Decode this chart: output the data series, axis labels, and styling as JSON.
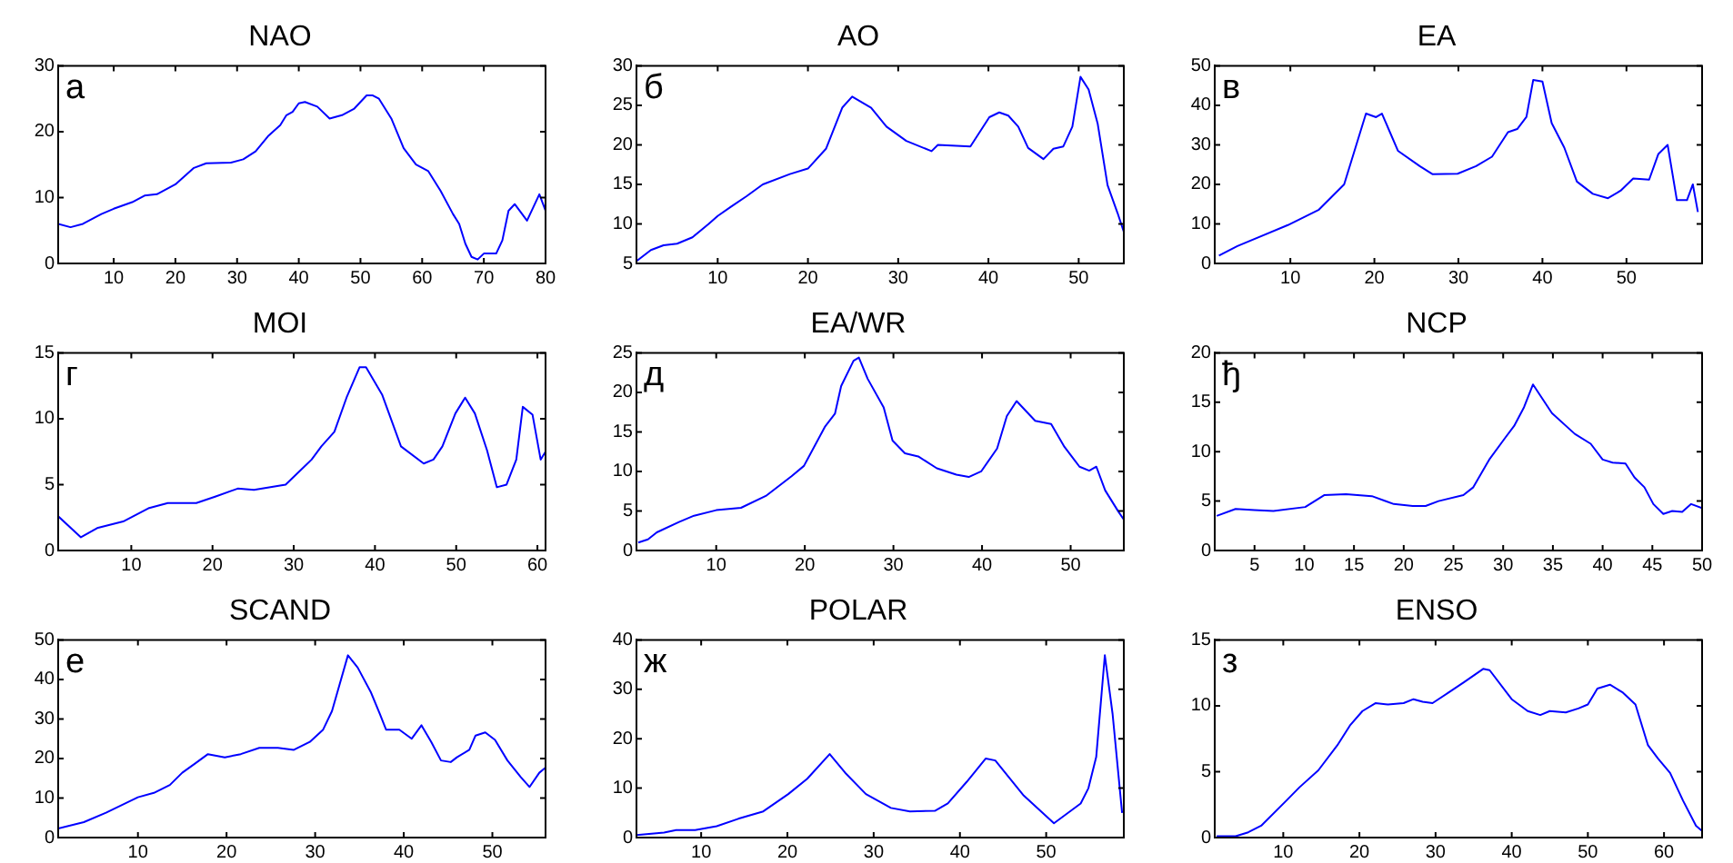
{
  "chart_data": [
    {
      "type": "line",
      "title": "NAO",
      "annotations": [
        "а"
      ],
      "color": "#0000ff",
      "grid": false,
      "legend": false,
      "xlim": [
        1,
        80
      ],
      "ylim": [
        0,
        30
      ],
      "xticks": [
        10,
        20,
        30,
        40,
        50,
        60,
        70,
        80
      ],
      "yticks": [
        0,
        10,
        20,
        30
      ],
      "x": [
        1,
        3,
        5,
        8,
        10,
        13,
        15,
        17,
        20,
        23,
        25,
        29,
        31,
        33,
        35,
        37,
        38,
        39,
        40,
        41,
        43,
        45,
        47,
        49,
        51,
        52,
        53,
        55,
        57,
        59,
        61,
        63,
        65,
        66,
        67,
        68,
        69,
        70,
        72,
        73,
        74,
        75,
        77,
        78,
        79,
        80
      ],
      "values": [
        6,
        5.5,
        6,
        7.5,
        8.3,
        9.3,
        10.3,
        10.5,
        12,
        14.5,
        15.2,
        15.3,
        15.8,
        17,
        19.3,
        21,
        22.5,
        23,
        24.3,
        24.5,
        23.8,
        22,
        22.5,
        23.5,
        25.5,
        25.5,
        25,
        22,
        17.5,
        15,
        14,
        11,
        7.5,
        6,
        3,
        1,
        0.6,
        1.5,
        1.5,
        3.5,
        8,
        9,
        6.5,
        8.5,
        10.5,
        8
      ]
    },
    {
      "type": "line",
      "title": "AO",
      "annotations": [
        "б"
      ],
      "color": "#0000ff",
      "grid": false,
      "legend": false,
      "xlim": [
        1,
        55
      ],
      "ylim": [
        5,
        30
      ],
      "xticks": [
        10,
        20,
        30,
        40,
        50
      ],
      "yticks": [
        5,
        10,
        15,
        20,
        25,
        30
      ],
      "x": [
        1,
        2.6,
        4,
        5.5,
        7.2,
        9,
        10,
        11.5,
        13.2,
        15,
        18,
        20,
        22,
        23.8,
        24.9,
        27,
        28.7,
        30.9,
        33.7,
        34.4,
        38,
        40.1,
        41.2,
        42.2,
        43.3,
        44.4,
        46.1,
        47.2,
        48.3,
        49.3,
        50.2,
        51.1,
        52.1,
        53.2,
        54.3,
        55
      ],
      "values": [
        5.3,
        6.7,
        7.3,
        7.5,
        8.3,
        10,
        11,
        12.2,
        13.5,
        15,
        16.3,
        17,
        19.5,
        24.7,
        26.1,
        24.7,
        22.3,
        20.5,
        19.2,
        20,
        19.8,
        23.5,
        24.1,
        23.7,
        22.3,
        19.6,
        18.2,
        19.5,
        19.8,
        22.3,
        28.6,
        27,
        22.7,
        14.9,
        11.4,
        9
      ]
    },
    {
      "type": "line",
      "title": "EA",
      "annotations": [
        "в"
      ],
      "color": "#0000ff",
      "grid": false,
      "legend": false,
      "xlim": [
        1,
        59
      ],
      "ylim": [
        0,
        50
      ],
      "xticks": [
        10,
        20,
        30,
        40,
        50
      ],
      "yticks": [
        0,
        10,
        20,
        30,
        40,
        50
      ],
      "x": [
        1.5,
        3.7,
        9.7,
        13.4,
        16.4,
        19,
        20.2,
        20.9,
        22.8,
        25.4,
        26.9,
        29.9,
        32.1,
        34,
        35.9,
        37,
        38.1,
        38.9,
        40,
        41.1,
        42.6,
        44.1,
        46,
        47.8,
        49.3,
        50.8,
        52.7,
        53.8,
        54.9,
        56,
        57.2,
        57.9,
        58.5
      ],
      "values": [
        2,
        4.4,
        9.7,
        13.6,
        20,
        37.9,
        37,
        37.9,
        28.5,
        24.6,
        22.6,
        22.7,
        24.6,
        27,
        33.2,
        34,
        37.1,
        46.4,
        46,
        35.5,
        29.3,
        20.7,
        17.6,
        16.5,
        18.4,
        21.5,
        21.2,
        27.7,
        30,
        16,
        16,
        20,
        13
      ]
    },
    {
      "type": "line",
      "title": "MOI",
      "annotations": [
        "г"
      ],
      "color": "#0000ff",
      "grid": false,
      "legend": false,
      "xlim": [
        1,
        61
      ],
      "ylim": [
        0,
        15
      ],
      "xticks": [
        10,
        20,
        30,
        40,
        50,
        60
      ],
      "yticks": [
        0,
        5,
        10,
        15
      ],
      "x": [
        1,
        3.8,
        5.8,
        9,
        12.1,
        14.5,
        18,
        20.4,
        23.1,
        25.1,
        29,
        32.2,
        33.4,
        35,
        36.5,
        38.1,
        38.9,
        40.9,
        43.2,
        46,
        47.2,
        48.3,
        49.9,
        51.1,
        52.3,
        53.8,
        55,
        56.2,
        57.4,
        58.2,
        59.4,
        60.4,
        61
      ],
      "values": [
        2.6,
        1,
        1.7,
        2.2,
        3.2,
        3.6,
        3.6,
        4.1,
        4.7,
        4.6,
        5,
        6.9,
        7.9,
        9,
        11.6,
        13.9,
        13.9,
        11.8,
        7.9,
        6.6,
        6.9,
        7.9,
        10.4,
        11.6,
        10.4,
        7.6,
        4.8,
        5,
        6.9,
        10.9,
        10.3,
        6.9,
        7.5
      ]
    },
    {
      "type": "line",
      "title": "EA/WR",
      "annotations": [
        "д"
      ],
      "color": "#0000ff",
      "grid": false,
      "legend": false,
      "xlim": [
        1,
        56
      ],
      "ylim": [
        0,
        25
      ],
      "xticks": [
        10,
        20,
        30,
        40,
        50
      ],
      "yticks": [
        0,
        5,
        10,
        15,
        20,
        25
      ],
      "x": [
        1.2,
        2.3,
        3.3,
        5.8,
        7.5,
        10,
        12.8,
        15.6,
        18.5,
        19.9,
        22.3,
        23.4,
        24.1,
        25.5,
        26.1,
        27.1,
        28.9,
        29.9,
        31.3,
        32.8,
        34.9,
        37.1,
        38.5,
        39.9,
        41.7,
        42.8,
        43.9,
        46,
        47.8,
        49.3,
        51,
        52.1,
        52.9,
        53.9,
        55.4,
        56
      ],
      "values": [
        1,
        1.4,
        2.3,
        3.6,
        4.4,
        5.1,
        5.4,
        6.9,
        9.4,
        10.7,
        15.7,
        17.3,
        20.8,
        24,
        24.4,
        21.7,
        18.1,
        13.9,
        12.3,
        11.9,
        10.4,
        9.6,
        9.3,
        10,
        12.9,
        17,
        18.9,
        16.4,
        16,
        13.1,
        10.6,
        10.1,
        10.6,
        7.6,
        4.9,
        3.9
      ]
    },
    {
      "type": "line",
      "title": "NCP",
      "annotations": [
        "ђ"
      ],
      "color": "#0000ff",
      "grid": false,
      "legend": false,
      "xlim": [
        1,
        50
      ],
      "ylim": [
        0,
        20
      ],
      "xticks": [
        5,
        10,
        15,
        20,
        25,
        30,
        35,
        40,
        45,
        50
      ],
      "yticks": [
        0,
        5,
        10,
        15,
        20
      ],
      "x": [
        1.2,
        3.1,
        5,
        6.9,
        10.1,
        12,
        14.2,
        16.8,
        19,
        20.9,
        22.2,
        23.5,
        26,
        27,
        28.6,
        30.2,
        31.1,
        32.1,
        33,
        34.9,
        37.2,
        38.8,
        40,
        41,
        42.3,
        43.2,
        44.2,
        45.1,
        46.1,
        47,
        48,
        48.9,
        50
      ],
      "values": [
        3.5,
        4.2,
        4.1,
        4,
        4.4,
        5.6,
        5.7,
        5.5,
        4.7,
        4.5,
        4.5,
        5,
        5.6,
        6.4,
        9.2,
        11.4,
        12.6,
        14.5,
        16.8,
        13.9,
        11.8,
        10.8,
        9.2,
        8.9,
        8.8,
        7.4,
        6.4,
        4.7,
        3.7,
        4,
        3.9,
        4.7,
        4.3
      ]
    },
    {
      "type": "line",
      "title": "SCAND",
      "annotations": [
        "е"
      ],
      "color": "#0000ff",
      "grid": false,
      "legend": false,
      "xlim": [
        1,
        56
      ],
      "ylim": [
        0,
        50
      ],
      "xticks": [
        10,
        20,
        30,
        40,
        50
      ],
      "yticks": [
        0,
        10,
        20,
        30,
        40,
        50
      ],
      "x": [
        1,
        3.9,
        6.4,
        10,
        11.8,
        13.6,
        15,
        16.5,
        17.9,
        19.8,
        21.6,
        23.7,
        25.8,
        27.6,
        29.4,
        30.9,
        31.9,
        33.7,
        34.8,
        36.3,
        37.3,
        38,
        39.5,
        40.9,
        42,
        43.1,
        44.2,
        45.3,
        46,
        47.4,
        48.1,
        49.2,
        50.3,
        51.7,
        53.2,
        54.2,
        55.3,
        56
      ],
      "values": [
        2.3,
        3.9,
        6.3,
        10.2,
        11.3,
        13.3,
        16.4,
        18.8,
        21.1,
        20.3,
        21.1,
        22.7,
        22.7,
        22.2,
        24.2,
        27.3,
        32,
        46.1,
        43,
        36.7,
        31.3,
        27.3,
        27.3,
        25,
        28.4,
        24.2,
        19.5,
        19.1,
        20.3,
        22.2,
        25.8,
        26.6,
        24.7,
        19.5,
        15.3,
        12.8,
        16.4,
        17.7
      ]
    },
    {
      "type": "line",
      "title": "POLAR",
      "annotations": [
        "ж"
      ],
      "color": "#0000ff",
      "grid": false,
      "legend": false,
      "xlim": [
        2.5,
        59
      ],
      "ylim": [
        0,
        40
      ],
      "xticks": [
        10,
        20,
        30,
        40,
        50
      ],
      "yticks": [
        0,
        10,
        20,
        30,
        40
      ],
      "x": [
        2.5,
        5.7,
        7.1,
        9.3,
        11.8,
        14.3,
        17.2,
        20.1,
        22.3,
        24.9,
        26.7,
        29.1,
        32,
        34.2,
        37.1,
        38.6,
        40.8,
        43,
        44.1,
        47.4,
        50.9,
        54,
        54.9,
        55.8,
        56.8,
        57.7,
        58.8
      ],
      "values": [
        0.5,
        1,
        1.5,
        1.5,
        2.3,
        3.8,
        5.3,
        8.8,
        11.9,
        16.9,
        13.1,
        8.8,
        6,
        5.3,
        5.4,
        6.9,
        11.3,
        16,
        15.6,
        8.5,
        2.9,
        6.9,
        10,
        16.3,
        36.9,
        25,
        5
      ]
    },
    {
      "type": "line",
      "title": "ENSO",
      "annotations": [
        "з"
      ],
      "color": "#0000ff",
      "grid": false,
      "legend": false,
      "xlim": [
        1,
        65
      ],
      "ylim": [
        0,
        15
      ],
      "xticks": [
        10,
        20,
        30,
        40,
        50,
        60
      ],
      "yticks": [
        0,
        5,
        10,
        15
      ],
      "x": [
        1.25,
        3.75,
        5.4,
        7.1,
        10.4,
        12.1,
        14.6,
        17.1,
        18.75,
        20.4,
        22.1,
        23.75,
        25.8,
        27.1,
        28.3,
        29.6,
        31.7,
        33.75,
        36.25,
        37.1,
        40,
        42.1,
        43.75,
        45,
        47.1,
        48.75,
        50,
        51.25,
        52.9,
        54.6,
        56.25,
        57.9,
        59.2,
        60.8,
        62.5,
        64.2,
        65
      ],
      "values": [
        0.1,
        0.1,
        0.4,
        0.9,
        2.8,
        3.8,
        5.1,
        7,
        8.5,
        9.6,
        10.2,
        10.1,
        10.2,
        10.5,
        10.3,
        10.2,
        11,
        11.8,
        12.8,
        12.7,
        10.5,
        9.6,
        9.3,
        9.6,
        9.5,
        9.8,
        10.1,
        11.3,
        11.6,
        11,
        10.1,
        7,
        6,
        4.9,
        2.8,
        0.9,
        0.5
      ]
    }
  ]
}
